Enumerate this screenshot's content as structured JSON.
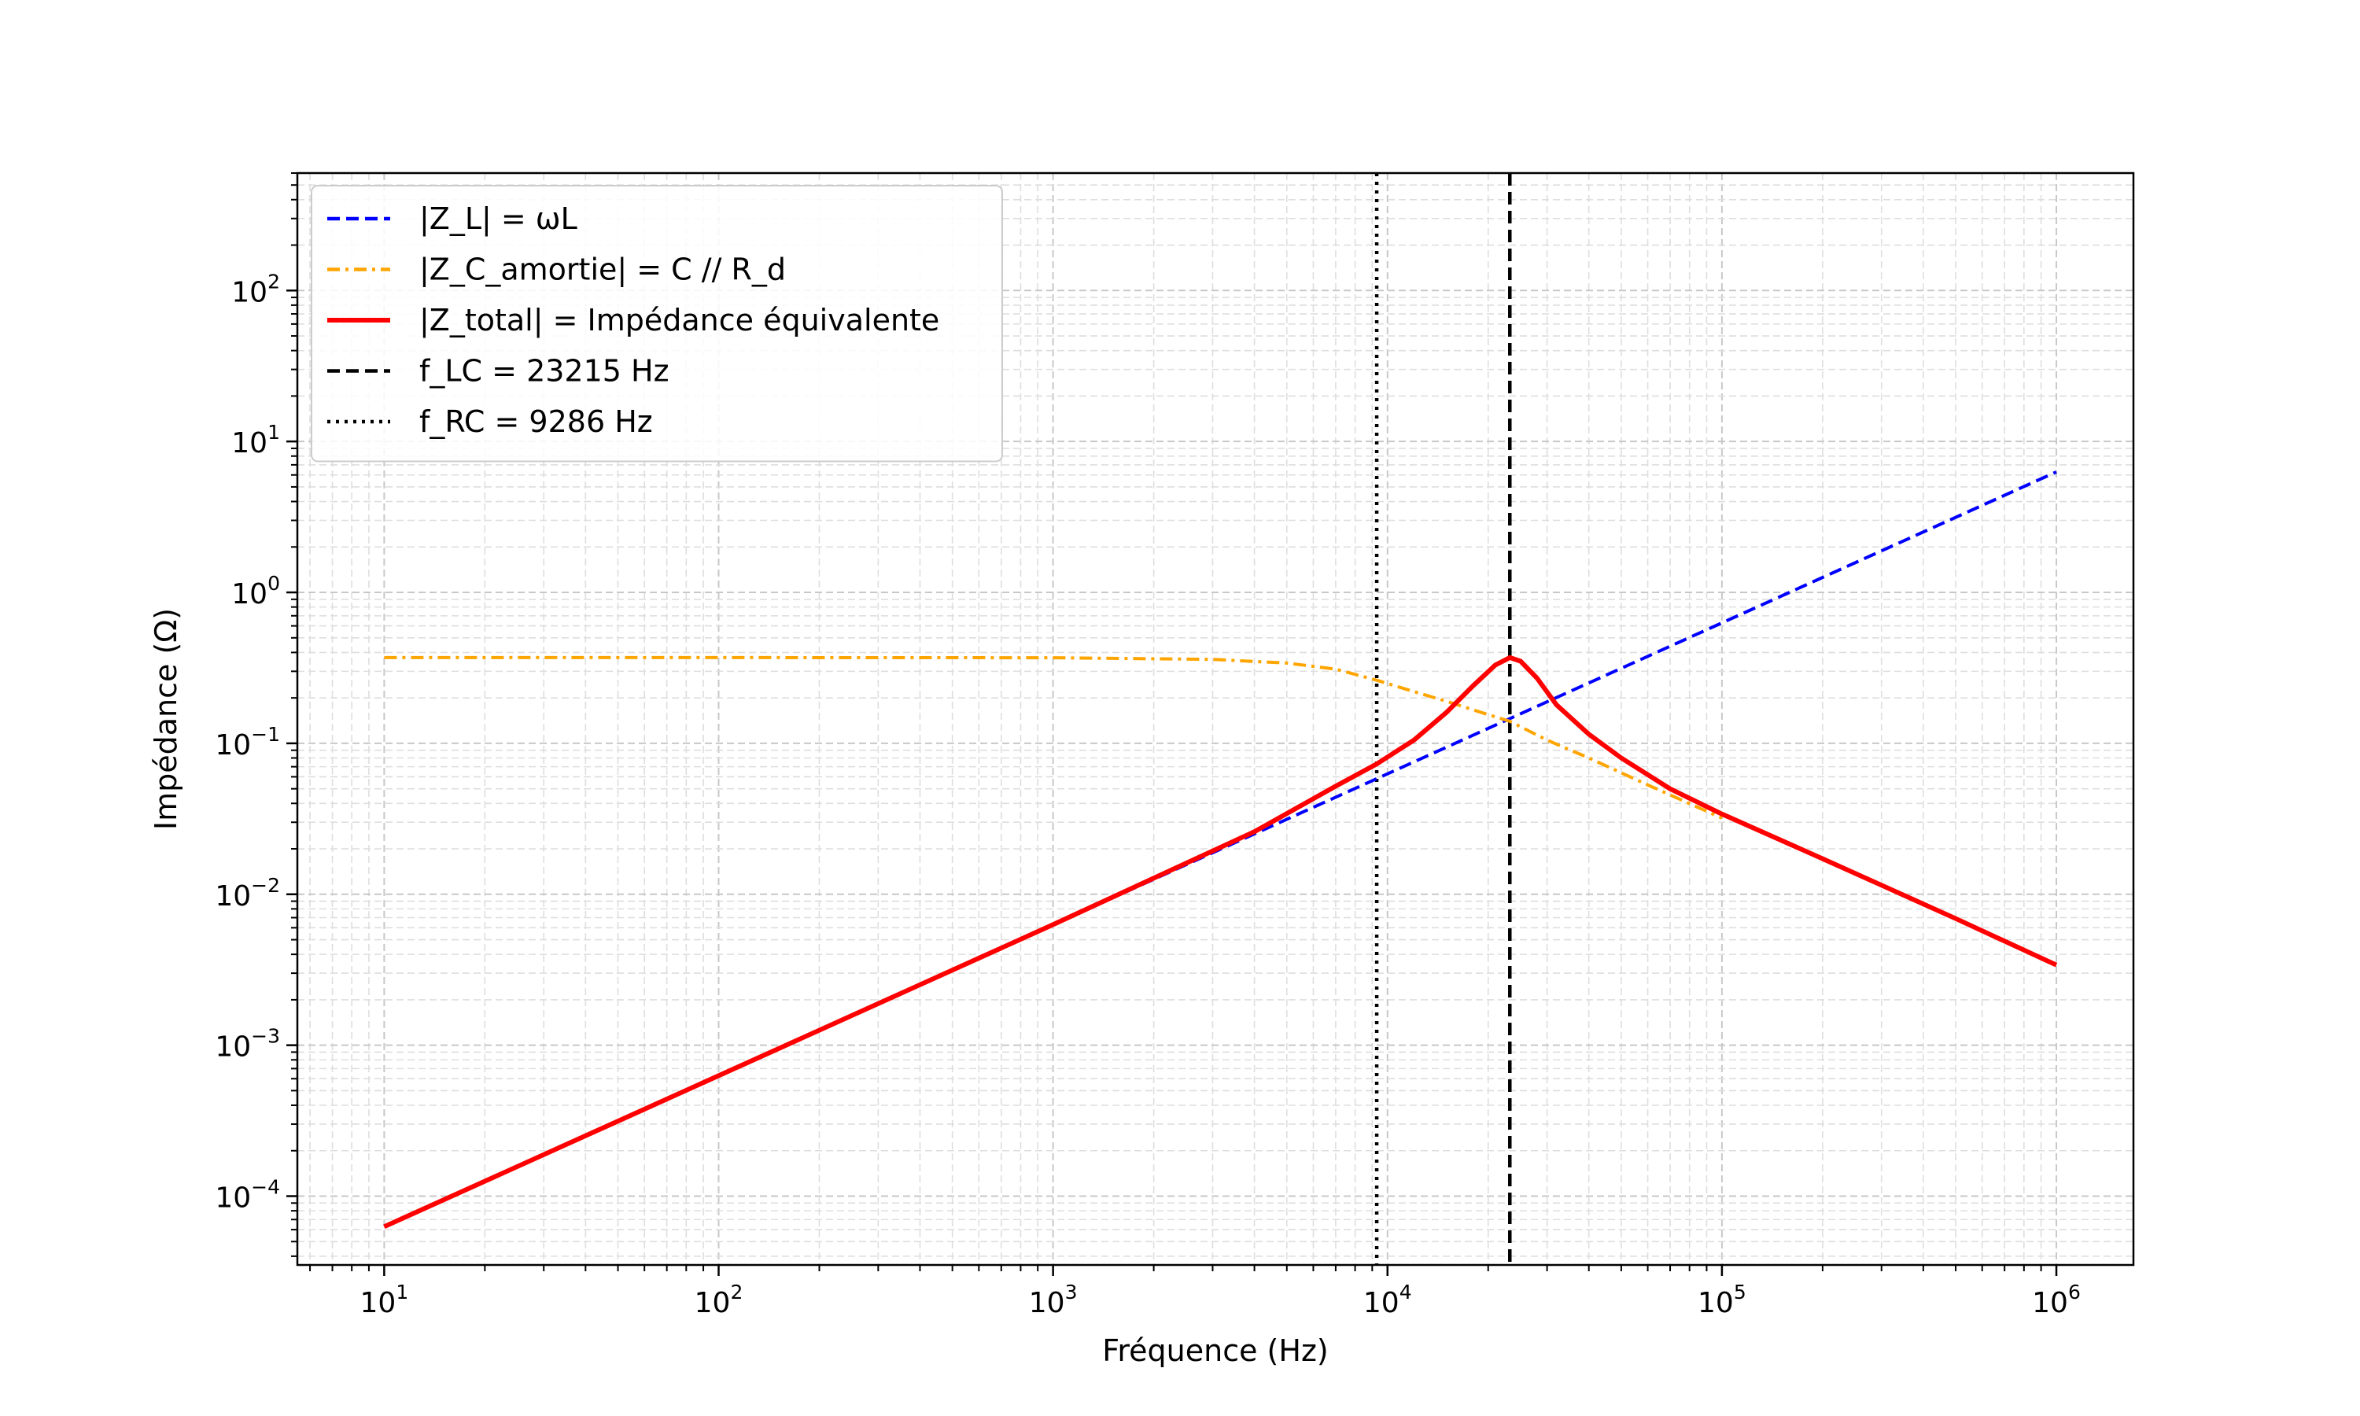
{
  "chart_data": {
    "type": "line",
    "xscale": "log",
    "yscale": "log",
    "xlim": [
      5.5,
      1700000
    ],
    "ylim": [
      3.5e-05,
      600
    ],
    "xlabel": "Fréquence (Hz)",
    "ylabel": "Impédance (Ω)",
    "x_tick_values": [
      10,
      100,
      1000,
      10000,
      100000,
      1000000
    ],
    "x_tick_labels": [
      {
        "base": "10",
        "exp": "1"
      },
      {
        "base": "10",
        "exp": "2"
      },
      {
        "base": "10",
        "exp": "3"
      },
      {
        "base": "10",
        "exp": "4"
      },
      {
        "base": "10",
        "exp": "5"
      },
      {
        "base": "10",
        "exp": "6"
      }
    ],
    "y_tick_values": [
      0.0001,
      0.001,
      0.01,
      0.1,
      1,
      10,
      100
    ],
    "y_tick_labels": [
      {
        "base": "10",
        "exp": "−4"
      },
      {
        "base": "10",
        "exp": "−3"
      },
      {
        "base": "10",
        "exp": "−2"
      },
      {
        "base": "10",
        "exp": "−1"
      },
      {
        "base": "10",
        "exp": "0"
      },
      {
        "base": "10",
        "exp": "1"
      },
      {
        "base": "10",
        "exp": "2"
      }
    ],
    "grid": "on (major and minor, dashed)",
    "legend_position": "top-left",
    "series": [
      {
        "name": "|Z_L| = ωL",
        "color": "#0000ff",
        "style": "dashed",
        "x": [
          10,
          100,
          1000,
          10000,
          100000,
          1000000
        ],
        "y": [
          6.28e-05,
          0.000628,
          0.00628,
          0.0628,
          0.628,
          6.28
        ]
      },
      {
        "name": "|Z_C_amortie| = C // R_d",
        "color": "#ffa500",
        "style": "dashdot",
        "x": [
          10,
          100,
          1000,
          3000,
          5000,
          7000,
          9286,
          12000,
          15000,
          20000,
          23215,
          30000,
          40000,
          60000,
          100000
        ],
        "y": [
          0.37,
          0.37,
          0.369,
          0.36,
          0.34,
          0.31,
          0.262,
          0.22,
          0.19,
          0.155,
          0.14,
          0.105,
          0.08,
          0.053,
          0.032
        ]
      },
      {
        "name": "|Z_total| = Impédance équivalente",
        "color": "#ff0000",
        "style": "solid",
        "x": [
          10,
          100,
          1000,
          4000,
          7000,
          9286,
          12000,
          15000,
          18000,
          21000,
          23215,
          25000,
          28000,
          32000,
          40000,
          50000,
          70000,
          100000,
          200000,
          500000,
          1000000
        ],
        "y": [
          6.28e-05,
          0.000628,
          0.00629,
          0.026,
          0.052,
          0.073,
          0.105,
          0.16,
          0.24,
          0.33,
          0.37,
          0.35,
          0.27,
          0.18,
          0.115,
          0.08,
          0.05,
          0.034,
          0.0172,
          0.0069,
          0.0034
        ]
      },
      {
        "name": "f_LC = 23215 Hz",
        "color": "#000000",
        "style": "dashed",
        "vertical_line_x": 23215
      },
      {
        "name": "f_RC = 9286 Hz",
        "color": "#000000",
        "style": "dotted",
        "vertical_line_x": 9286
      }
    ]
  }
}
